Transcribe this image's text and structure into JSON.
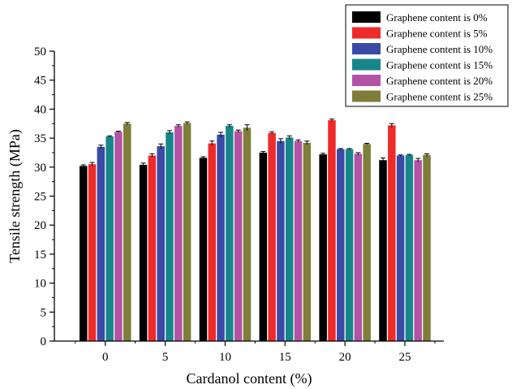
{
  "chart_data": {
    "type": "bar",
    "title": "",
    "xlabel": "Cardanol content (%)",
    "ylabel": "Tensile strength (MPa)",
    "ylim": [
      0,
      50
    ],
    "yticks": [
      "0",
      "5",
      "10",
      "15",
      "20",
      "25",
      "30",
      "35",
      "40",
      "45",
      "50"
    ],
    "categories": [
      "0",
      "5",
      "10",
      "15",
      "20",
      "25"
    ],
    "legend_position": "top-right",
    "grid": false,
    "error_bars": true,
    "series": [
      {
        "name": "Graphene content is 0%",
        "color": "#000000",
        "values": [
          30.2,
          30.4,
          31.6,
          32.5,
          32.2,
          31.2
        ],
        "errors": [
          0.2,
          0.3,
          0.2,
          0.2,
          0.2,
          0.4
        ]
      },
      {
        "name": "Graphene content is 5%",
        "color": "#ee2b2b",
        "values": [
          30.5,
          32.0,
          34.1,
          35.9,
          38.1,
          37.2
        ],
        "errors": [
          0.3,
          0.3,
          0.4,
          0.2,
          0.2,
          0.3
        ]
      },
      {
        "name": "Graphene content is 10%",
        "color": "#3a4aa6",
        "values": [
          33.5,
          33.6,
          35.6,
          34.5,
          33.1,
          32.0
        ],
        "errors": [
          0.3,
          0.4,
          0.4,
          0.4,
          0.1,
          0.1
        ]
      },
      {
        "name": "Graphene content is 15%",
        "color": "#17868a",
        "values": [
          35.3,
          36.0,
          37.1,
          35.1,
          33.1,
          32.1
        ],
        "errors": [
          0.1,
          0.3,
          0.2,
          0.3,
          0.1,
          0.1
        ]
      },
      {
        "name": "Graphene content is 20%",
        "color": "#b452a6",
        "values": [
          36.1,
          37.1,
          36.2,
          34.5,
          32.3,
          31.2
        ],
        "errors": [
          0.1,
          0.2,
          0.2,
          0.2,
          0.2,
          0.3
        ]
      },
      {
        "name": "Graphene content is 25%",
        "color": "#7e7e3a",
        "values": [
          37.5,
          37.6,
          36.8,
          34.2,
          34.0,
          32.1
        ],
        "errors": [
          0.2,
          0.2,
          0.5,
          0.3,
          0.1,
          0.2
        ]
      }
    ]
  }
}
